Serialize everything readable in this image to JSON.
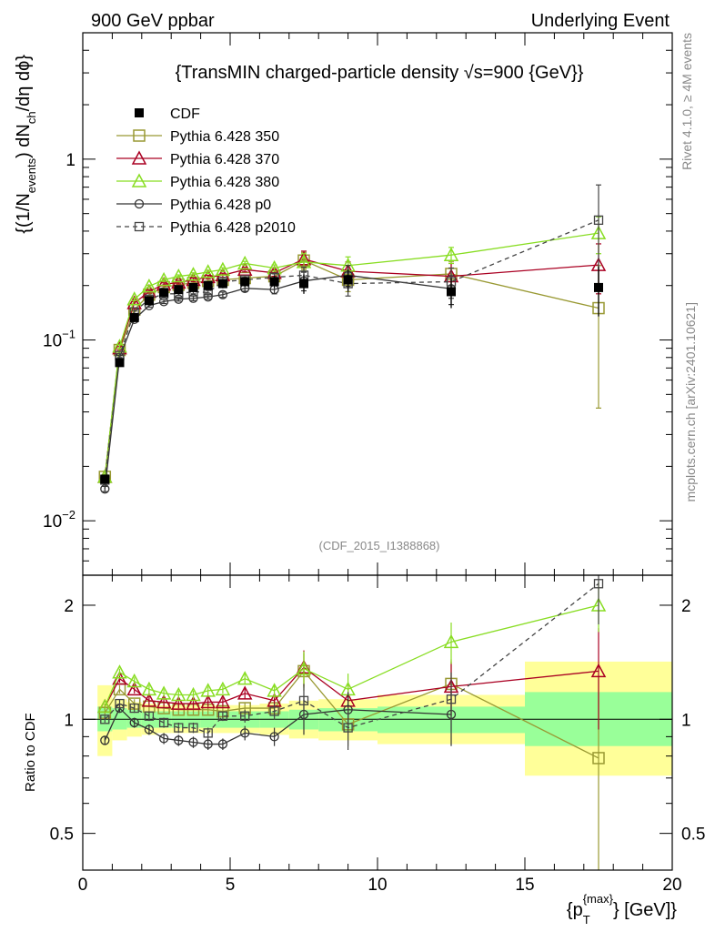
{
  "header": {
    "left": "900 GeV ppbar",
    "right": "Underlying Event",
    "side_top": "Rivet 4.1.0, ≥ 4M events",
    "side_bottom": "mcplots.cern.ch [arXiv:2401.10621]"
  },
  "chart_data": [
    {
      "type": "scatter",
      "panel": "main",
      "title": "{TransMIN charged-particle density √s=900 {GeV}}",
      "reference_label": "(CDF_2015_I1388868)",
      "ylabel": {
        "part1": "{(1/N",
        "sub1": "events",
        "part2": ") dN",
        "sub2": "ch",
        "part3": "/dη dϕ}"
      },
      "yscale": "log",
      "ylim": [
        0.005,
        5
      ],
      "xlim": [
        0,
        20
      ],
      "yticks": [
        0.01,
        0.1,
        1
      ],
      "yticklabels": [
        {
          "base": "10",
          "exp": "−2"
        },
        {
          "base": "10",
          "exp": "−1"
        },
        {
          "base": "1",
          "exp": ""
        }
      ],
      "legend_position": "top-left",
      "legend": [
        "CDF",
        "Pythia 6.428 350",
        "Pythia 6.428 370",
        "Pythia 6.428 380",
        "Pythia 6.428 p0",
        "Pythia 6.428 p2010"
      ],
      "x": [
        0.75,
        1.25,
        1.75,
        2.25,
        2.75,
        3.25,
        3.75,
        4.25,
        4.75,
        5.5,
        6.5,
        7.5,
        9.0,
        12.5,
        17.5
      ],
      "data": {
        "name": "CDF",
        "values": [
          0.017,
          0.075,
          0.133,
          0.165,
          0.183,
          0.19,
          0.195,
          0.2,
          0.205,
          0.21,
          0.21,
          0.205,
          0.215,
          0.185,
          0.195
        ],
        "err_up": [
          0.001,
          0.004,
          0.006,
          0.007,
          0.008,
          0.009,
          0.01,
          0.011,
          0.012,
          0.013,
          0.016,
          0.025,
          0.03,
          0.035,
          0.06
        ],
        "err_down": [
          0.001,
          0.004,
          0.006,
          0.007,
          0.008,
          0.009,
          0.01,
          0.011,
          0.012,
          0.013,
          0.016,
          0.025,
          0.03,
          0.035,
          0.06
        ]
      },
      "series": [
        {
          "name": "Pythia 6.428 350",
          "color": "#999933",
          "marker": "square-open",
          "dash": "",
          "values": [
            0.0175,
            0.088,
            0.147,
            0.178,
            0.196,
            0.202,
            0.207,
            0.212,
            0.215,
            0.22,
            0.225,
            0.275,
            0.215,
            0.232,
            0.15
          ],
          "err": [
            0.0005,
            0.002,
            0.003,
            0.003,
            0.004,
            0.004,
            0.005,
            0.005,
            0.006,
            0.007,
            0.01,
            0.03,
            0.03,
            0.04,
            0.108
          ]
        },
        {
          "name": "Pythia 6.428 370",
          "color": "#aa0022",
          "marker": "triangle-open",
          "dash": "",
          "values": [
            0.0175,
            0.09,
            0.16,
            0.185,
            0.203,
            0.208,
            0.215,
            0.223,
            0.228,
            0.245,
            0.235,
            0.28,
            0.24,
            0.225,
            0.26
          ],
          "err": [
            0.0005,
            0.002,
            0.003,
            0.003,
            0.004,
            0.004,
            0.005,
            0.005,
            0.006,
            0.007,
            0.01,
            0.03,
            0.03,
            0.04,
            0.08
          ]
        },
        {
          "name": "Pythia 6.428 380",
          "color": "#88dd22",
          "marker": "triangle-open",
          "dash": "",
          "values": [
            0.0175,
            0.092,
            0.168,
            0.198,
            0.215,
            0.225,
            0.23,
            0.238,
            0.245,
            0.265,
            0.25,
            0.27,
            0.258,
            0.295,
            0.39
          ],
          "err": [
            0.0005,
            0.002,
            0.003,
            0.003,
            0.004,
            0.004,
            0.005,
            0.005,
            0.006,
            0.007,
            0.01,
            0.03,
            0.03,
            0.03,
            0.09
          ]
        },
        {
          "name": "Pythia 6.428 p0",
          "color": "#333333",
          "marker": "circle-open",
          "dash": "",
          "values": [
            0.015,
            0.08,
            0.13,
            0.155,
            0.163,
            0.168,
            0.17,
            0.173,
            0.178,
            0.193,
            0.19,
            0.212,
            0.228,
            0.192
          ],
          "err": [
            0.0005,
            0.002,
            0.003,
            0.003,
            0.004,
            0.004,
            0.005,
            0.005,
            0.006,
            0.007,
            0.01,
            0.025,
            0.03,
            0.035
          ]
        },
        {
          "name": "Pythia 6.428 p2010",
          "color": "#444444",
          "marker": "square-open-small",
          "dash": "5,4",
          "values": [
            0.0168,
            0.082,
            0.143,
            0.168,
            0.18,
            0.18,
            0.185,
            0.183,
            0.21,
            0.215,
            0.222,
            0.228,
            0.205,
            0.21,
            0.46
          ],
          "err": [
            0.0005,
            0.002,
            0.003,
            0.003,
            0.004,
            0.004,
            0.005,
            0.005,
            0.006,
            0.007,
            0.01,
            0.025,
            0.03,
            0.04,
            0.26
          ]
        }
      ]
    },
    {
      "type": "scatter",
      "panel": "ratio",
      "ylabel": "Ratio to CDF",
      "xlabel": {
        "part1": "{p",
        "sub": "T",
        "sup": "{max}",
        "part2": "} [GeV]}"
      },
      "yscale": "log",
      "ylim": [
        0.4,
        2.4
      ],
      "xlim": [
        0,
        20
      ],
      "xticks": [
        0,
        5,
        10,
        15,
        20
      ],
      "xticklabels": [
        "0",
        "5",
        "10",
        "15",
        "20"
      ],
      "yticks": [
        0.5,
        1,
        2
      ],
      "yticklabels": [
        "0.5",
        "1",
        "2"
      ],
      "bins": [
        [
          0.5,
          1.0
        ],
        [
          1.0,
          1.5
        ],
        [
          1.5,
          2.0
        ],
        [
          2.0,
          2.5
        ],
        [
          2.5,
          3.0
        ],
        [
          3.0,
          3.5
        ],
        [
          3.5,
          4.0
        ],
        [
          4.0,
          4.5
        ],
        [
          4.5,
          5.0
        ],
        [
          5.0,
          6.0
        ],
        [
          6.0,
          7.0
        ],
        [
          7.0,
          8.0
        ],
        [
          8.0,
          10.0
        ],
        [
          10.0,
          15.0
        ],
        [
          15.0,
          20.0
        ]
      ],
      "band_inner": [
        [
          0.93,
          1.08
        ],
        [
          0.94,
          1.07
        ],
        [
          0.95,
          1.06
        ],
        [
          0.95,
          1.05
        ],
        [
          0.95,
          1.05
        ],
        [
          0.95,
          1.05
        ],
        [
          0.95,
          1.05
        ],
        [
          0.95,
          1.05
        ],
        [
          0.95,
          1.05
        ],
        [
          0.95,
          1.05
        ],
        [
          0.95,
          1.05
        ],
        [
          0.94,
          1.06
        ],
        [
          0.93,
          1.07
        ],
        [
          0.92,
          1.08
        ],
        [
          0.85,
          1.18
        ]
      ],
      "band_outer": [
        [
          0.8,
          1.23
        ],
        [
          0.88,
          1.13
        ],
        [
          0.9,
          1.11
        ],
        [
          0.91,
          1.1
        ],
        [
          0.92,
          1.09
        ],
        [
          0.92,
          1.09
        ],
        [
          0.92,
          1.09
        ],
        [
          0.92,
          1.09
        ],
        [
          0.92,
          1.09
        ],
        [
          0.92,
          1.09
        ],
        [
          0.91,
          1.1
        ],
        [
          0.89,
          1.12
        ],
        [
          0.88,
          1.13
        ],
        [
          0.86,
          1.16
        ],
        [
          0.71,
          1.42
        ]
      ],
      "series": [
        {
          "name": "Pythia 6.428 350",
          "values": [
            1.04,
            1.2,
            1.1,
            1.08,
            1.07,
            1.06,
            1.06,
            1.06,
            1.05,
            1.07,
            1.07,
            1.34,
            0.97,
            1.24,
            0.79
          ],
          "err": [
            0.02,
            0.03,
            0.03,
            0.03,
            0.03,
            0.03,
            0.03,
            0.03,
            0.03,
            0.04,
            0.05,
            0.15,
            0.12,
            0.2,
            0.5
          ]
        },
        {
          "name": "Pythia 6.428 370",
          "values": [
            1.08,
            1.28,
            1.2,
            1.12,
            1.11,
            1.1,
            1.1,
            1.11,
            1.11,
            1.17,
            1.12,
            1.37,
            1.12,
            1.22,
            1.34
          ],
          "err": [
            0.02,
            0.03,
            0.03,
            0.03,
            0.03,
            0.03,
            0.03,
            0.03,
            0.03,
            0.04,
            0.05,
            0.15,
            0.12,
            0.2,
            0.4
          ]
        },
        {
          "name": "Pythia 6.428 380",
          "values": [
            1.08,
            1.33,
            1.26,
            1.2,
            1.17,
            1.16,
            1.16,
            1.19,
            1.2,
            1.28,
            1.19,
            1.36,
            1.2,
            1.6,
            2.0
          ],
          "err": [
            0.02,
            0.03,
            0.03,
            0.03,
            0.03,
            0.03,
            0.03,
            0.03,
            0.03,
            0.04,
            0.05,
            0.15,
            0.12,
            0.2,
            0.3
          ]
        },
        {
          "name": "Pythia 6.428 p0",
          "values": [
            0.88,
            1.07,
            0.98,
            0.94,
            0.89,
            0.88,
            0.87,
            0.86,
            0.86,
            0.92,
            0.9,
            1.03,
            1.06,
            1.03
          ],
          "err": [
            0.02,
            0.03,
            0.03,
            0.03,
            0.03,
            0.03,
            0.03,
            0.03,
            0.03,
            0.04,
            0.05,
            0.12,
            0.12,
            0.18
          ]
        },
        {
          "name": "Pythia 6.428 p2010",
          "values": [
            1.0,
            1.1,
            1.07,
            1.02,
            0.98,
            0.95,
            0.95,
            0.92,
            1.02,
            1.02,
            1.05,
            1.12,
            0.95,
            1.13,
            2.28
          ],
          "err": [
            0.02,
            0.03,
            0.03,
            0.03,
            0.03,
            0.03,
            0.03,
            0.03,
            0.03,
            0.04,
            0.05,
            0.12,
            0.12,
            0.2,
            0.5
          ]
        }
      ]
    }
  ]
}
